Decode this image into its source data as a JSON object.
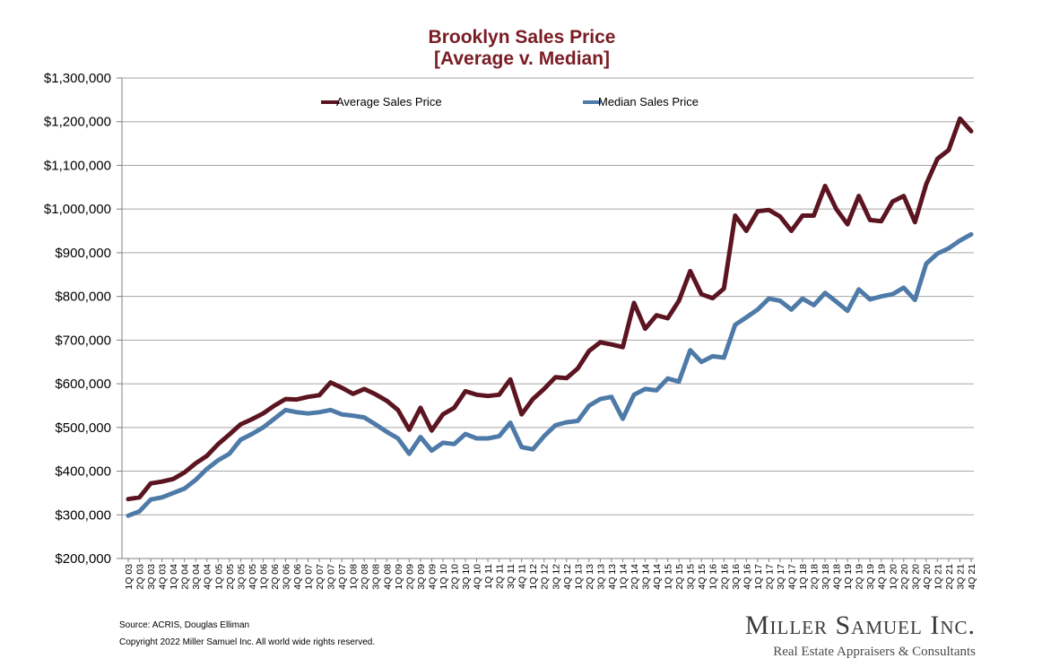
{
  "chart_data": {
    "type": "line",
    "title": [
      "Brooklyn Sales Price",
      "[Average v. Median]"
    ],
    "xlabel": "",
    "ylabel": "",
    "ylim": [
      200000,
      1300000
    ],
    "yticks": [
      200000,
      300000,
      400000,
      500000,
      600000,
      700000,
      800000,
      900000,
      1000000,
      1100000,
      1200000,
      1300000
    ],
    "ytick_labels": [
      "$200,000",
      "$300,000",
      "$400,000",
      "$500,000",
      "$600,000",
      "$700,000",
      "$800,000",
      "$900,000",
      "$1,000,000",
      "$1,100,000",
      "$1,200,000",
      "$1,300,000"
    ],
    "grid": "horizontal",
    "legend_position": "top",
    "categories": [
      "1Q 03",
      "2Q 03",
      "3Q 03",
      "4Q 03",
      "1Q 04",
      "2Q 04",
      "3Q 04",
      "4Q 04",
      "1Q 05",
      "2Q 05",
      "3Q 05",
      "4Q 05",
      "1Q 06",
      "2Q 06",
      "3Q 06",
      "4Q 06",
      "1Q 07",
      "2Q 07",
      "3Q 07",
      "4Q 07",
      "1Q 08",
      "2Q 08",
      "3Q 08",
      "4Q 08",
      "1Q 09",
      "2Q 09",
      "3Q 09",
      "4Q 09",
      "1Q 10",
      "2Q 10",
      "3Q 10",
      "4Q 10",
      "1Q 11",
      "2Q 11",
      "3Q 11",
      "4Q 11",
      "1Q 12",
      "2Q 12",
      "3Q 12",
      "4Q 12",
      "1Q 13",
      "2Q 13",
      "3Q 13",
      "4Q 13",
      "1Q 14",
      "2Q 14",
      "3Q 14",
      "4Q 14",
      "1Q 15",
      "2Q 15",
      "3Q 15",
      "4Q 15",
      "1Q 16",
      "2Q 16",
      "3Q 16",
      "4Q 16",
      "1Q 17",
      "2Q 17",
      "3Q 17",
      "4Q 17",
      "1Q 18",
      "2Q 18",
      "3Q 18",
      "4Q 18",
      "1Q 19",
      "2Q 19",
      "3Q 19",
      "4Q 19",
      "1Q 20",
      "2Q 20",
      "3Q 20",
      "4Q 20",
      "1Q 21",
      "2Q 21",
      "3Q 21",
      "4Q 21"
    ],
    "series": [
      {
        "name": "Average Sales Price",
        "color": "#5c1520",
        "values": [
          336000,
          340000,
          372000,
          376000,
          382000,
          397000,
          418000,
          435000,
          462000,
          484000,
          507000,
          519000,
          532000,
          550000,
          565000,
          564000,
          570000,
          574000,
          603000,
          591000,
          577000,
          588000,
          576000,
          561000,
          540000,
          495000,
          545000,
          493000,
          530000,
          545000,
          583000,
          575000,
          572000,
          575000,
          610000,
          530000,
          565000,
          588000,
          615000,
          613000,
          635000,
          675000,
          695000,
          690000,
          684000,
          785000,
          726000,
          757000,
          750000,
          790000,
          858000,
          805000,
          796000,
          818000,
          985000,
          950000,
          995000,
          998000,
          983000,
          950000,
          985000,
          985000,
          1053000,
          1000000,
          965000,
          1030000,
          975000,
          972000,
          1017000,
          1030000,
          970000,
          1057000,
          1115000,
          1135000,
          1207000,
          1178000
        ]
      },
      {
        "name": "Median Sales Price",
        "color": "#4e7aa8",
        "values": [
          298000,
          308000,
          335000,
          340000,
          350000,
          360000,
          380000,
          405000,
          425000,
          440000,
          472000,
          485000,
          500000,
          520000,
          540000,
          535000,
          532000,
          535000,
          540000,
          530000,
          527000,
          523000,
          507000,
          490000,
          475000,
          440000,
          478000,
          447000,
          465000,
          462000,
          485000,
          475000,
          475000,
          480000,
          511000,
          455000,
          450000,
          480000,
          505000,
          512000,
          515000,
          550000,
          565000,
          570000,
          520000,
          575000,
          588000,
          585000,
          612000,
          605000,
          677000,
          650000,
          663000,
          660000,
          735000,
          752000,
          770000,
          795000,
          790000,
          770000,
          795000,
          780000,
          808000,
          788000,
          767000,
          816000,
          793000,
          800000,
          805000,
          820000,
          792000,
          875000,
          898000,
          910000,
          928000,
          942000
        ]
      }
    ]
  },
  "footer": {
    "source": "Source: ACRIS, Douglas Elliman",
    "copyright": "Copyright 2022 Miller Samuel Inc.  All world wide rights reserved."
  },
  "brand": {
    "name": "Miller Samuel Inc.",
    "tagline": "Real Estate Appraisers & Consultants"
  }
}
